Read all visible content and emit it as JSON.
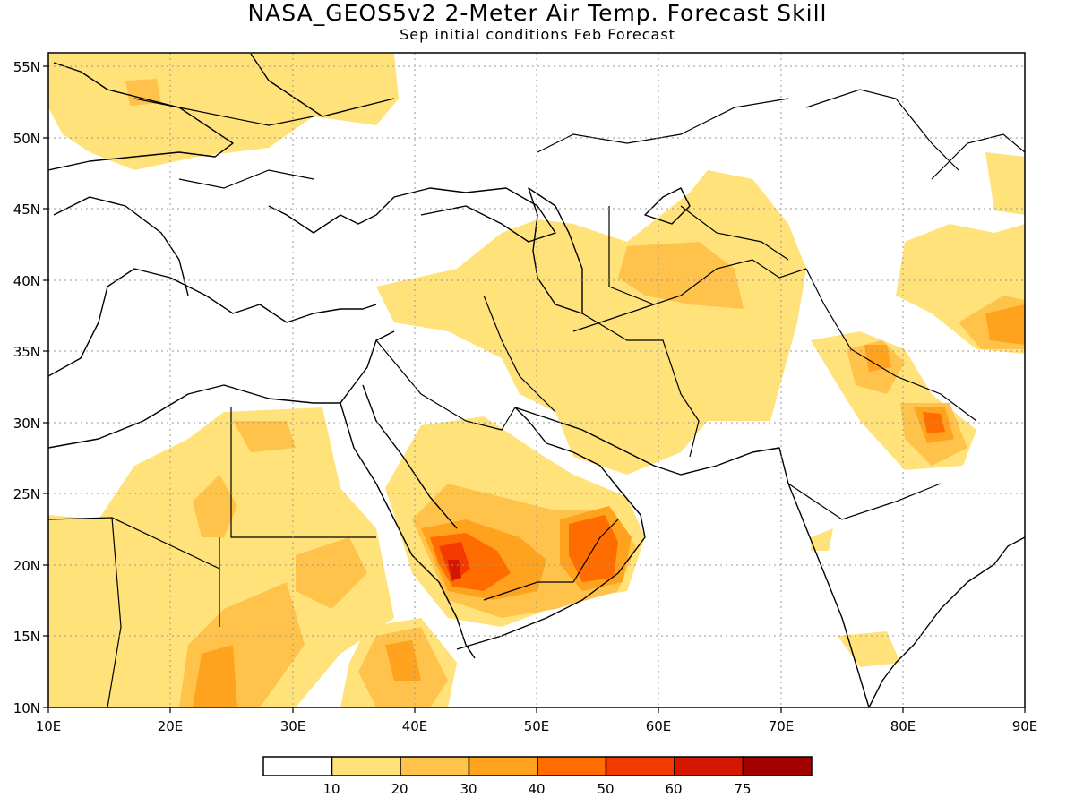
{
  "title": "NASA_GEOS5v2 2-Meter Air Temp. Forecast Skill",
  "subtitle": "Sep initial conditions  Feb Forecast",
  "map": {
    "lon_range": [
      10,
      90
    ],
    "lat_range": [
      10,
      56
    ],
    "lon_ticks": [
      "10E",
      "20E",
      "30E",
      "40E",
      "50E",
      "60E",
      "70E",
      "80E",
      "90E"
    ],
    "lat_ticks": [
      "10N",
      "15N",
      "20N",
      "25N",
      "30N",
      "35N",
      "40N",
      "45N",
      "50N",
      "55N"
    ],
    "grid": "dotted"
  },
  "legend": {
    "colors": [
      "#ffffff",
      "#ffe27a",
      "#ffc34b",
      "#ffa21e",
      "#ff6d00",
      "#f33a00",
      "#d51600",
      "#a30000"
    ],
    "labels": [
      "10",
      "20",
      "30",
      "40",
      "50",
      "60",
      "75"
    ]
  }
}
